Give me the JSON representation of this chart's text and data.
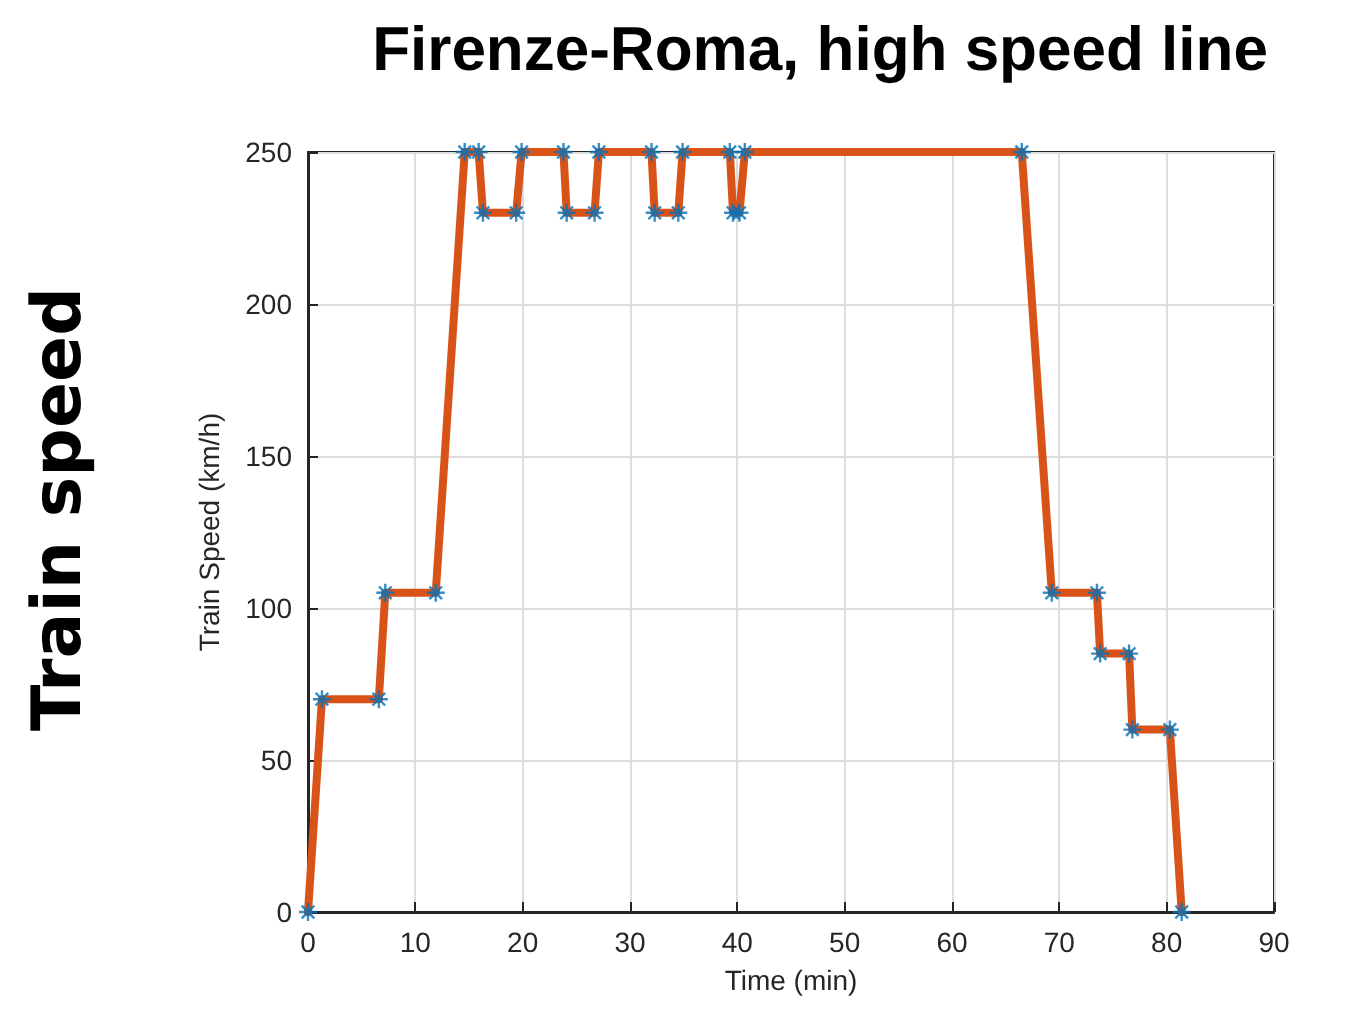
{
  "chart_data": {
    "type": "line",
    "title": "Firenze-Roma, high speed line",
    "xlabel": "Time (min)",
    "ylabel": "Train Speed (km/h)",
    "annotations": [
      "Train speed"
    ],
    "x": [
      0,
      1.3,
      6.6,
      7.2,
      11.9,
      14.6,
      15.9,
      16.3,
      19.4,
      19.9,
      23.8,
      24.1,
      26.7,
      27.1,
      32.0,
      32.3,
      34.5,
      34.9,
      39.3,
      39.6,
      40.2,
      40.7,
      66.5,
      69.3,
      73.5,
      73.8,
      76.5,
      76.8,
      80.3,
      81.4
    ],
    "series": [
      {
        "type": "scatter",
        "color": "#0072bd",
        "marker": "cross",
        "values": [
          0,
          70,
          70,
          105,
          105,
          250,
          250,
          230,
          230,
          250,
          250,
          230,
          230,
          250,
          250,
          230,
          230,
          250,
          250,
          230,
          230,
          250,
          250,
          105,
          105,
          85,
          85,
          60,
          60,
          0
        ]
      },
      {
        "type": "line",
        "color": "#d95319",
        "marker": "none",
        "line_style": "solid",
        "values": [
          0,
          70,
          70,
          105,
          105,
          250,
          250,
          230,
          230,
          250,
          250,
          230,
          230,
          250,
          250,
          230,
          230,
          250,
          250,
          230,
          230,
          250,
          250,
          105,
          105,
          85,
          85,
          60,
          60,
          0
        ]
      }
    ],
    "xlim": [
      0,
      90
    ],
    "xticks": [
      0,
      10,
      20,
      30,
      40,
      50,
      60,
      70,
      80,
      90
    ],
    "ylim": [
      0,
      250
    ],
    "yticks": [
      0,
      50,
      100,
      150,
      200,
      250
    ],
    "grid": true
  }
}
